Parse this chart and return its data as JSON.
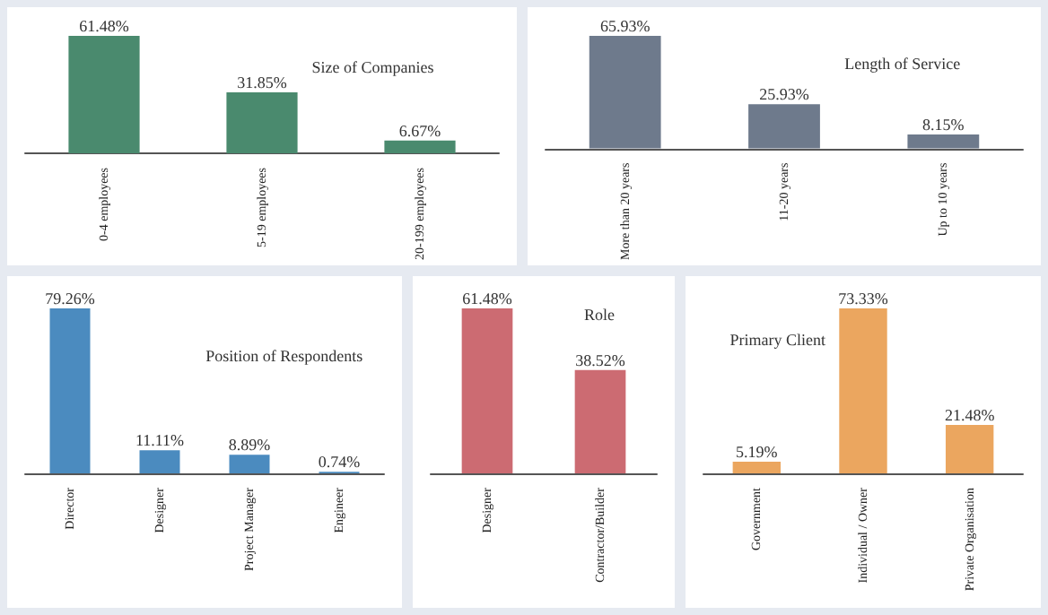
{
  "chart_data": [
    {
      "type": "bar",
      "title": "Size of Companies",
      "categories": [
        "0-4 employees",
        "5-19 employees",
        "20-199 employees"
      ],
      "values": [
        61.48,
        31.85,
        6.67
      ],
      "value_labels": [
        "61.48%",
        "31.85%",
        "6.67%"
      ],
      "color": "#4a8a6e"
    },
    {
      "type": "bar",
      "title": "Length of Service",
      "categories": [
        "More than 20 years",
        "11-20 years",
        "Up to 10 years"
      ],
      "values": [
        65.93,
        25.93,
        8.15
      ],
      "value_labels": [
        "65.93%",
        "25.93%",
        "8.15%"
      ],
      "color": "#6e7a8c"
    },
    {
      "type": "bar",
      "title": "Position of Respondents",
      "categories": [
        "Director",
        "Designer",
        "Project Manager",
        "Engineer"
      ],
      "values": [
        79.26,
        11.11,
        8.89,
        0.74
      ],
      "value_labels": [
        "79.26%",
        "11.11%",
        "8.89%",
        "0.74%"
      ],
      "color": "#4b8bbf"
    },
    {
      "type": "bar",
      "title": "Role",
      "categories": [
        "Designer",
        "Contractor/Builder"
      ],
      "values": [
        61.48,
        38.52
      ],
      "value_labels": [
        "61.48%",
        "38.52%"
      ],
      "color": "#cc6b72"
    },
    {
      "type": "bar",
      "title": "Primary Client",
      "categories": [
        "Government",
        "Individual / Owner",
        "Private Organisation"
      ],
      "values": [
        5.19,
        73.33,
        21.48
      ],
      "value_labels": [
        "5.19%",
        "73.33%",
        "21.48%"
      ],
      "color": "#eba65f"
    }
  ]
}
